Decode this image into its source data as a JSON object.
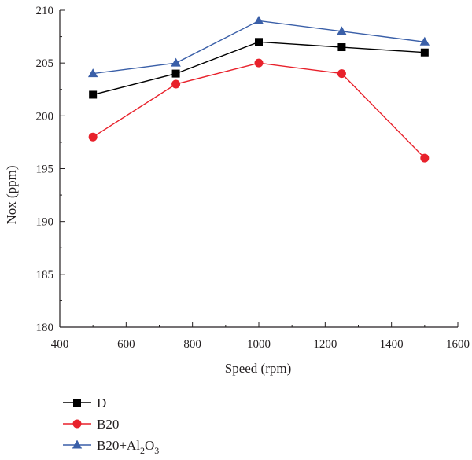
{
  "chart_data": {
    "type": "line",
    "title": "",
    "xlabel": "Speed (rpm)",
    "ylabel": "Nox (ppm)",
    "xlim": [
      400,
      1600
    ],
    "ylim": [
      180,
      210
    ],
    "x_ticks": [
      400,
      600,
      800,
      1000,
      1200,
      1400,
      1600
    ],
    "y_ticks": [
      180,
      185,
      190,
      195,
      200,
      205,
      210
    ],
    "grid": false,
    "legend_position": "bottom-left, below plot",
    "x": [
      500,
      750,
      1000,
      1250,
      1500
    ],
    "series": [
      {
        "name": "D",
        "legend_main": "D",
        "legend_sub": [],
        "marker": "square",
        "color": "#000000",
        "values": [
          202,
          204,
          207,
          206.5,
          206
        ]
      },
      {
        "name": "B20",
        "legend_main": "B20",
        "legend_sub": [],
        "marker": "circle",
        "color": "#e8212b",
        "values": [
          198,
          203,
          205,
          204,
          196
        ]
      },
      {
        "name": "B20+Al2O3",
        "legend_main": "B20+Al",
        "legend_sub": [
          [
            "2",
            "O"
          ],
          [
            "3",
            ""
          ]
        ],
        "marker": "triangle",
        "color": "#3a5fa8",
        "values": [
          204,
          205,
          209,
          208,
          207
        ]
      }
    ]
  }
}
